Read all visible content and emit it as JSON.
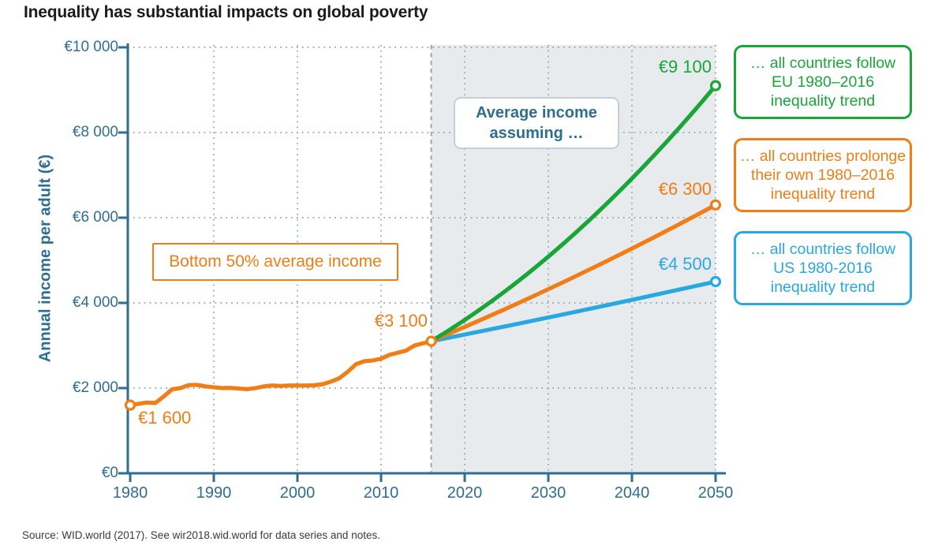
{
  "title": "Inequality has substantial impacts on global poverty",
  "source": "Source: WID.world (2017). See wir2018.wid.world for data series and notes.",
  "colors": {
    "axis": "#2e6e91",
    "grid": "#92a1ac",
    "shade": "#e8ebee",
    "divider": "#9aa6ad",
    "orange": "#f07d16",
    "green": "#19a639",
    "blue": "#29a8e0",
    "annotation_border_gray": "#c5ced6",
    "title_text": "#1b1b1b",
    "source_text": "#3a3a3a"
  },
  "axes": {
    "y_title": "Annual income per adult (€)",
    "y_ticks": [
      {
        "value": 0,
        "label": "€0"
      },
      {
        "value": 2000,
        "label": "€2 000"
      },
      {
        "value": 4000,
        "label": "€4 000"
      },
      {
        "value": 6000,
        "label": "€6 000"
      },
      {
        "value": 8000,
        "label": "€8 000"
      },
      {
        "value": 10000,
        "label": "€10 000"
      }
    ],
    "x_ticks": [
      {
        "value": 1980,
        "label": "1980"
      },
      {
        "value": 1990,
        "label": "1990"
      },
      {
        "value": 2000,
        "label": "2000"
      },
      {
        "value": 2010,
        "label": "2010"
      },
      {
        "value": 2020,
        "label": "2020"
      },
      {
        "value": 2030,
        "label": "2030"
      },
      {
        "value": 2040,
        "label": "2040"
      },
      {
        "value": 2050,
        "label": "2050"
      }
    ]
  },
  "annotations": {
    "assuming_line1": "Average income",
    "assuming_line2": "assuming …",
    "bottom50": "Bottom 50% average income",
    "value_start": "€1 600",
    "value_converge": "€3 100",
    "value_eu": "€9 100",
    "value_own": "€6 300",
    "value_us": "€4 500"
  },
  "legend": {
    "boxes": [
      {
        "id": "eu",
        "color": "#19a639",
        "lines": [
          "… all countries follow",
          "EU 1980–2016",
          "inequality trend"
        ]
      },
      {
        "id": "own",
        "color": "#f07d16",
        "lines": [
          "… all countries prolonge",
          "their own 1980–2016",
          "inequality trend"
        ]
      },
      {
        "id": "us",
        "color": "#29a8e0",
        "lines": [
          "… all countries follow",
          "US 1980-2016",
          "inequality trend"
        ]
      }
    ]
  },
  "chart_data": {
    "type": "line",
    "title": "Inequality has substantial impacts on global poverty",
    "xlabel": "",
    "ylabel": "Annual income per adult (€)",
    "xlim": [
      1980,
      2050
    ],
    "ylim": [
      0,
      10000
    ],
    "grid": "dotted, both axes",
    "projection_region": [
      2016,
      2050
    ],
    "series": [
      {
        "name": "Bottom 50% average income (historical)",
        "color": "#f07d16",
        "curve": "poly",
        "points": [
          [
            1980,
            1600
          ],
          [
            1981,
            1630
          ],
          [
            1982,
            1660
          ],
          [
            1983,
            1650
          ],
          [
            1984,
            1800
          ],
          [
            1985,
            1970
          ],
          [
            1986,
            2000
          ],
          [
            1987,
            2070
          ],
          [
            1988,
            2075
          ],
          [
            1989,
            2040
          ],
          [
            1990,
            2020
          ],
          [
            1991,
            2000
          ],
          [
            1992,
            2005
          ],
          [
            1993,
            1990
          ],
          [
            1994,
            1975
          ],
          [
            1995,
            2000
          ],
          [
            1996,
            2040
          ],
          [
            1997,
            2060
          ],
          [
            1998,
            2050
          ],
          [
            1999,
            2060
          ],
          [
            2000,
            2060
          ],
          [
            2001,
            2060
          ],
          [
            2002,
            2065
          ],
          [
            2003,
            2090
          ],
          [
            2004,
            2150
          ],
          [
            2005,
            2230
          ],
          [
            2006,
            2380
          ],
          [
            2007,
            2560
          ],
          [
            2008,
            2630
          ],
          [
            2009,
            2650
          ],
          [
            2010,
            2690
          ],
          [
            2011,
            2780
          ],
          [
            2012,
            2830
          ],
          [
            2013,
            2880
          ],
          [
            2014,
            3000
          ],
          [
            2015,
            3050
          ],
          [
            2016,
            3100
          ]
        ]
      },
      {
        "name": "Projection: US 1980-2016 inequality trend",
        "color": "#29a8e0",
        "curve": "quad",
        "points": [
          [
            2016,
            3100
          ],
          [
            2033,
            3780
          ],
          [
            2050,
            4500
          ]
        ]
      },
      {
        "name": "Projection: own 1980–2016 inequality trend",
        "color": "#f07d16",
        "curve": "quad",
        "points": [
          [
            2016,
            3100
          ],
          [
            2033,
            4600
          ],
          [
            2050,
            6300
          ]
        ]
      },
      {
        "name": "Projection: EU 1980–2016 inequality trend",
        "color": "#19a639",
        "curve": "quad",
        "points": [
          [
            2016,
            3100
          ],
          [
            2033,
            5600
          ],
          [
            2050,
            9100
          ]
        ]
      }
    ],
    "markers": [
      {
        "x": 1980,
        "y": 1600,
        "color": "#f07d16"
      },
      {
        "x": 2016,
        "y": 3100,
        "color": "#f07d16"
      },
      {
        "x": 2050,
        "y": 9100,
        "color": "#19a639"
      },
      {
        "x": 2050,
        "y": 6300,
        "color": "#f07d16"
      },
      {
        "x": 2050,
        "y": 4500,
        "color": "#29a8e0"
      }
    ]
  }
}
